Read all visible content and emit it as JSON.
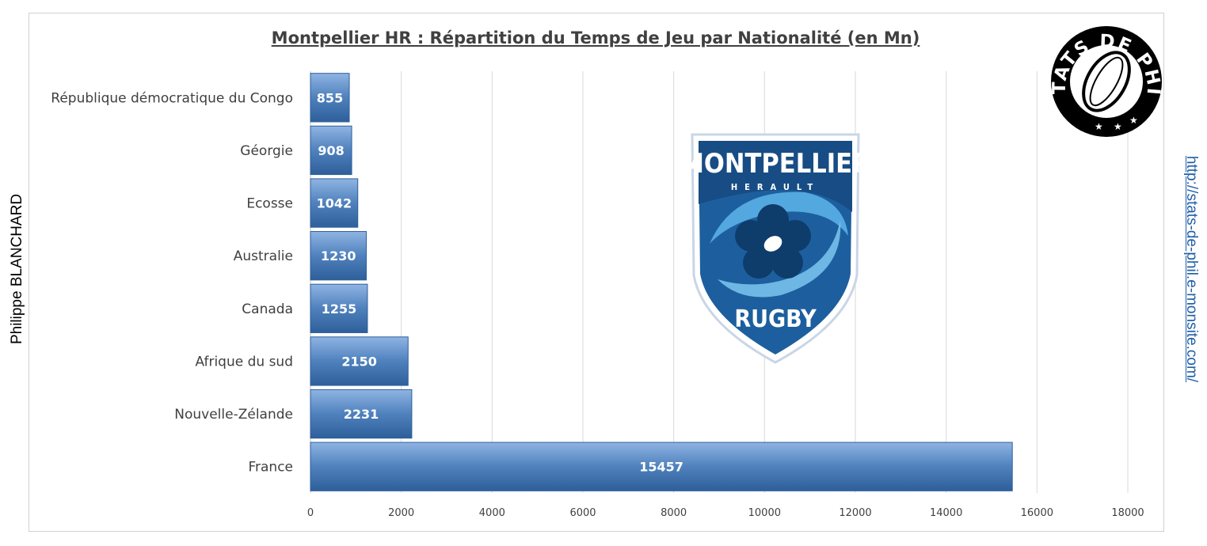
{
  "chart_data": {
    "type": "bar",
    "orientation": "horizontal",
    "title": "Montpellier HR : Répartition du Temps de Jeu  par Nationalité (en Mn)",
    "categories": [
      "République démocratique du Congo",
      "Géorgie",
      "Ecosse",
      "Australie",
      "Canada",
      "Afrique du sud",
      "Nouvelle-Zélande",
      "France"
    ],
    "values": [
      855,
      908,
      1042,
      1230,
      1255,
      2150,
      2231,
      15457
    ],
    "data_labels": [
      "855",
      "908",
      "1042",
      "1230",
      "1255",
      "2150",
      "2231",
      "15457"
    ],
    "xlim": [
      0,
      18000
    ],
    "x_ticks": [
      "0",
      "2000",
      "4000",
      "6000",
      "8000",
      "10000",
      "12000",
      "14000",
      "16000",
      "18000"
    ],
    "grid": "vertical",
    "bar_color": "#4a7ebb"
  },
  "side_text": {
    "left": "Philippe BLANCHARD",
    "right": "http://stats-de-phil.e-monsite.com/"
  },
  "badge": {
    "text": "STATS DE PHIL",
    "color": "#000000"
  },
  "logo": {
    "top": "MONTPELLIER",
    "middle": "HERAULT",
    "bottom": "RUGBY",
    "color": "#1d5f9e"
  }
}
